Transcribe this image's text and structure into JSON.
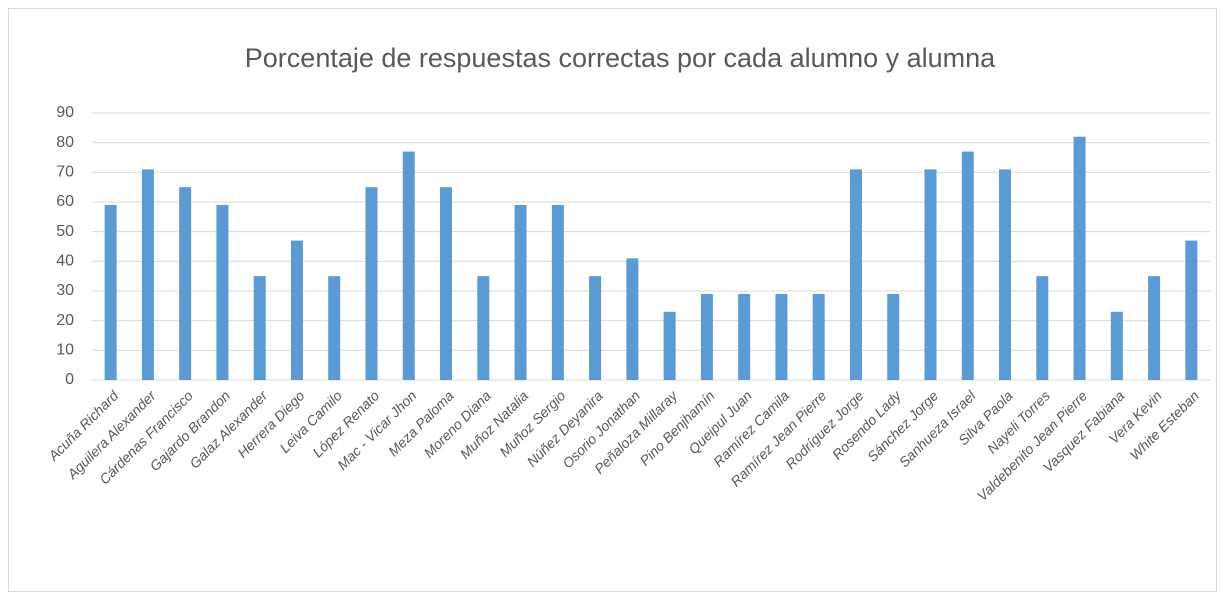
{
  "chart_data": {
    "type": "bar",
    "title": "Porcentaje de respuestas correctas por cada alumno y alumna",
    "categories": [
      "Acuña Richard",
      "Aguilera Alexander",
      "Cárdenas Francisco",
      "Gajardo Brandon",
      "Galaz Alexander",
      "Herrera Diego",
      "Leiva Camilo",
      "López Renato",
      "Mac - Vicar Jhon",
      "Meza Paloma",
      "Moreno Diana",
      "Muñoz Natalia",
      "Muñoz Sergio",
      "Núñez Deyanira",
      "Osorio Jonathan",
      "Peñaloza Millaray",
      "Pino Benjhamín",
      "Queipul Juan",
      "Ramírez Camila",
      "Ramírez Jean Pierre",
      "Rodríguez Jorge",
      "Rosendo Lady",
      "Sánchez Jorge",
      "Sanhueza Israel",
      "Silva Paola",
      "Nayeli Torres",
      "Valdebenito Jean Pierre",
      "Vasquez Fabiana",
      "Vera Kevin",
      "White Esteban"
    ],
    "values": [
      59,
      71,
      65,
      59,
      35,
      47,
      35,
      65,
      77,
      65,
      35,
      59,
      59,
      35,
      41,
      23,
      29,
      29,
      29,
      29,
      71,
      29,
      71,
      77,
      71,
      35,
      82,
      23,
      35,
      47
    ],
    "color": "#5b9bd5",
    "ylim": [
      0,
      90
    ],
    "yticks": [
      0,
      10,
      20,
      30,
      40,
      50,
      60,
      70,
      80,
      90
    ],
    "grid": true
  }
}
